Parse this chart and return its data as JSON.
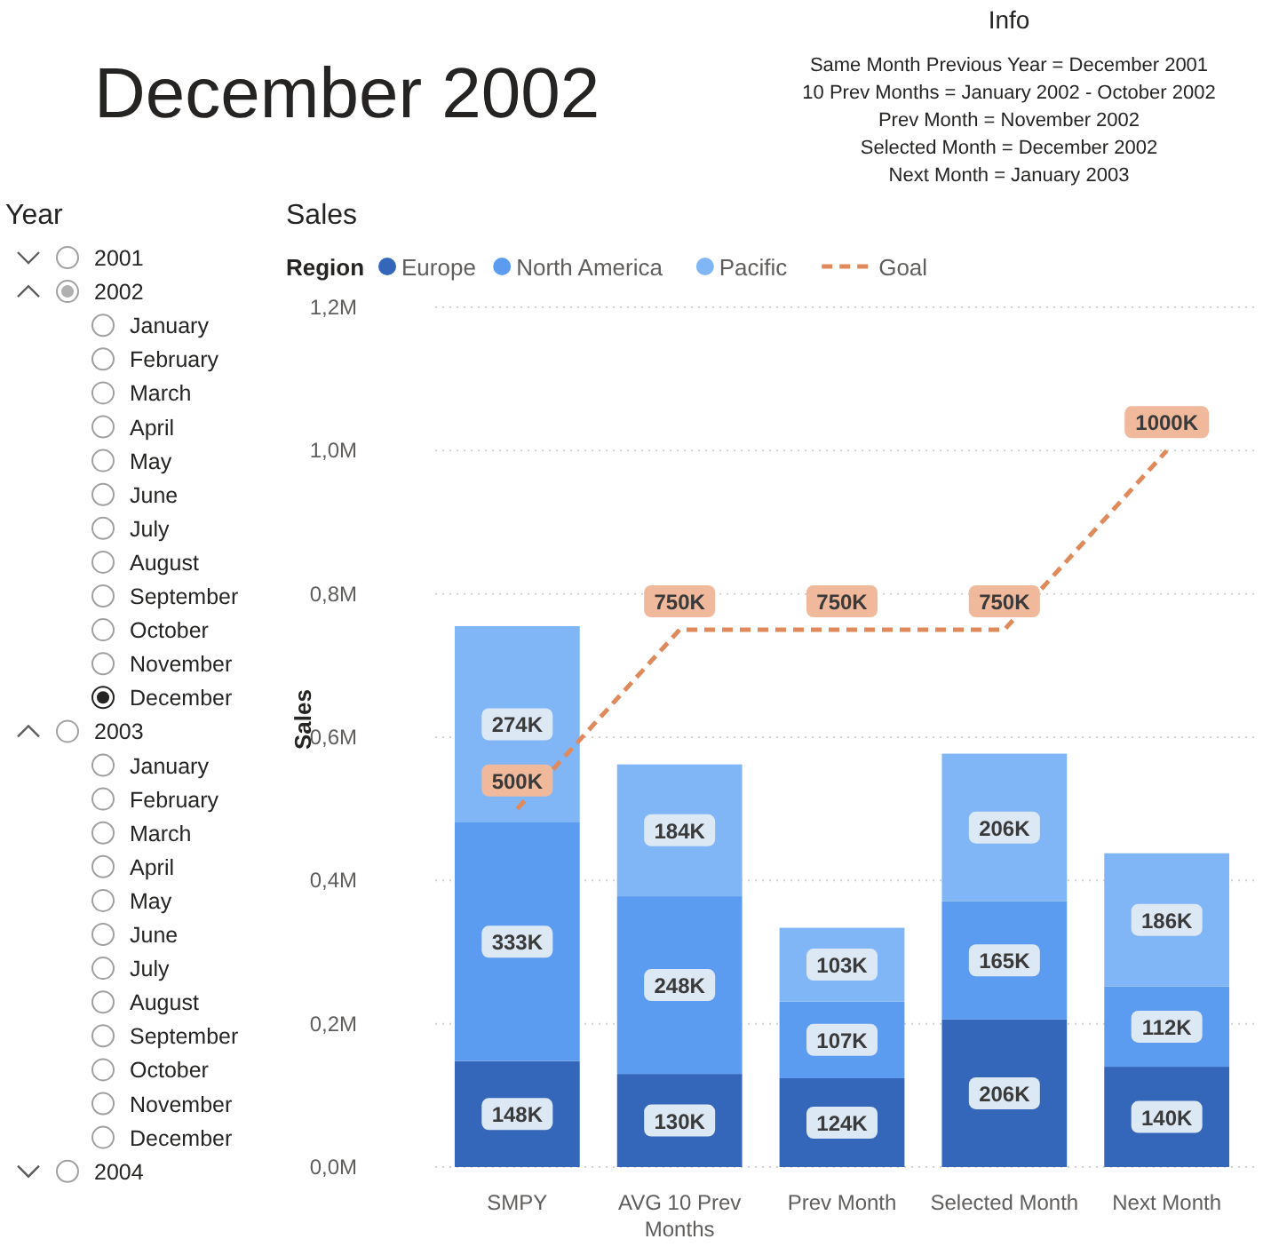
{
  "chart_data": [
    {
      "type": "other",
      "title": "December 2002"
    },
    {
      "type": "other",
      "title": "Info",
      "annotations": [
        "Same Month Previous Year = December 2001",
        "10 Prev Months = January 2002 - October 2002",
        "Prev Month = November 2002",
        "Selected Month = December 2002",
        "Next Month = January 2003"
      ]
    },
    {
      "type": "other",
      "title": "Year",
      "annotations": [
        "2001",
        "2002",
        "January",
        "February",
        "March",
        "April",
        "May",
        "June",
        "July",
        "August",
        "September",
        "October",
        "November",
        "December",
        "2003",
        "January",
        "February",
        "March",
        "April",
        "May",
        "June",
        "July",
        "August",
        "September",
        "October",
        "November",
        "December",
        "2004"
      ]
    },
    {
      "type": "bar",
      "title": "Sales",
      "ylabel": "Sales",
      "legend_title": "Region",
      "legend": "top left",
      "stacked": true,
      "grid": "y",
      "categories": [
        "SMPY",
        "AVG 10 Prev Months",
        "Prev Month",
        "Selected Month",
        "Next Month"
      ],
      "ylim": [
        0,
        1200000
      ],
      "yticks": [
        {
          "value": 0,
          "label": "0,0M"
        },
        {
          "value": 200000,
          "label": "0,2M"
        },
        {
          "value": 400000,
          "label": "0,4M"
        },
        {
          "value": 600000,
          "label": "0,6M"
        },
        {
          "value": 800000,
          "label": "0,8M"
        },
        {
          "value": 1000000,
          "label": "1,0M"
        },
        {
          "value": 1200000,
          "label": "1,2M"
        }
      ],
      "series": [
        {
          "name": "Europe",
          "color": "#3467b9",
          "values": [
            148000,
            130000,
            124000,
            206000,
            140000
          ],
          "value_labels": [
            "148K",
            "130K",
            "124K",
            "206K",
            "140K"
          ]
        },
        {
          "name": "North America",
          "color": "#5c9cf0",
          "values": [
            333000,
            248000,
            107000,
            165000,
            112000
          ],
          "value_labels": [
            "333K",
            "248K",
            "107K",
            "165K",
            "112K"
          ]
        },
        {
          "name": "Pacific",
          "color": "#80b6f6",
          "values": [
            274000,
            184000,
            103000,
            206000,
            186000
          ],
          "value_labels": [
            "274K",
            "184K",
            "103K",
            "206K",
            "186K"
          ]
        },
        {
          "name": "Goal",
          "type": "line",
          "color": "#e08a5c",
          "line_style": "dashed",
          "marker": "none",
          "values": [
            500000,
            750000,
            750000,
            750000,
            1000000
          ],
          "value_labels": [
            "500K",
            "750K",
            "750K",
            "750K",
            "1000K"
          ]
        }
      ]
    }
  ]
}
